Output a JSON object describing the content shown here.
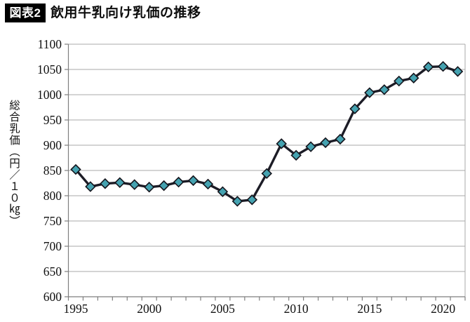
{
  "header": {
    "badge_label": "図表2",
    "title": "飲用牛乳向け乳価の推移"
  },
  "chart_data": {
    "type": "line",
    "title": "飲用牛乳向け乳価の推移",
    "xlabel": "",
    "ylabel": "総合乳価（円／１０㎏）",
    "x": [
      1995,
      1996,
      1997,
      1998,
      1999,
      2000,
      2001,
      2002,
      2003,
      2004,
      2005,
      2006,
      2007,
      2008,
      2009,
      2010,
      2011,
      2012,
      2013,
      2014,
      2015,
      2016,
      2017,
      2018,
      2019,
      2020,
      2021
    ],
    "series": [
      {
        "name": "総合乳価",
        "values": [
          852,
          818,
          824,
          826,
          822,
          817,
          820,
          827,
          830,
          823,
          808,
          789,
          792,
          844,
          903,
          880,
          897,
          905,
          912,
          972,
          1004,
          1010,
          1027,
          1033,
          1055,
          1056,
          1046
        ]
      }
    ],
    "ylim": [
      600,
      1100
    ],
    "ytick_step": 50,
    "y_ticks": [
      600,
      650,
      700,
      750,
      800,
      850,
      900,
      950,
      1000,
      1050,
      1100
    ],
    "x_tick_labels": [
      "1995",
      "2000",
      "2005",
      "2010",
      "2015",
      "2020"
    ],
    "x_tick_years": [
      1995,
      2000,
      2005,
      2010,
      2015,
      2020
    ],
    "grid": "horizontal",
    "legend_position": "none",
    "marker": "diamond",
    "colors": {
      "line": "#1c1c26",
      "marker_fill": "#45a2b0",
      "marker_stroke": "#14141c",
      "gridline": "#a9a9a9",
      "axis": "#7f7f7f",
      "text": "#1a1a1a",
      "badge_bg": "#000000",
      "badge_text": "#ffffff"
    }
  }
}
